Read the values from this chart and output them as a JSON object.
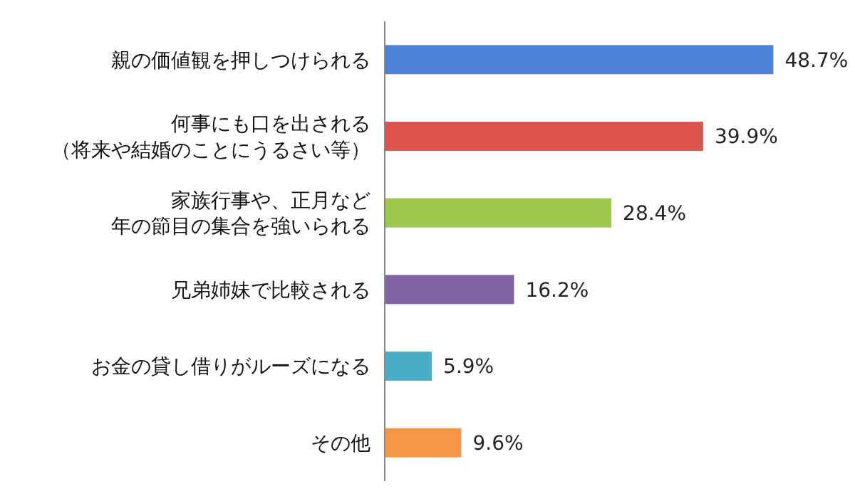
{
  "chart_data": {
    "type": "bar",
    "orientation": "horizontal",
    "categories": [
      "親の価値観を押しつけられる",
      "何事にも口を出される（将来や結婚のことにうるさい等）",
      "家族行事や、正月など年の節目の集合を強いられる",
      "兄弟姉妹で比較される",
      "お金の貸し借りがルーズになる",
      "その他"
    ],
    "values": [
      48.7,
      39.9,
      28.4,
      16.2,
      5.9,
      9.6
    ],
    "colors": [
      "#4f81d9",
      "#dc5450",
      "#9cc84e",
      "#8064a2",
      "#4bacc6",
      "#f79646"
    ],
    "value_labels": [
      "48.7%",
      "39.9%",
      "28.4%",
      "16.2%",
      "5.9%",
      "9.6%"
    ]
  }
}
